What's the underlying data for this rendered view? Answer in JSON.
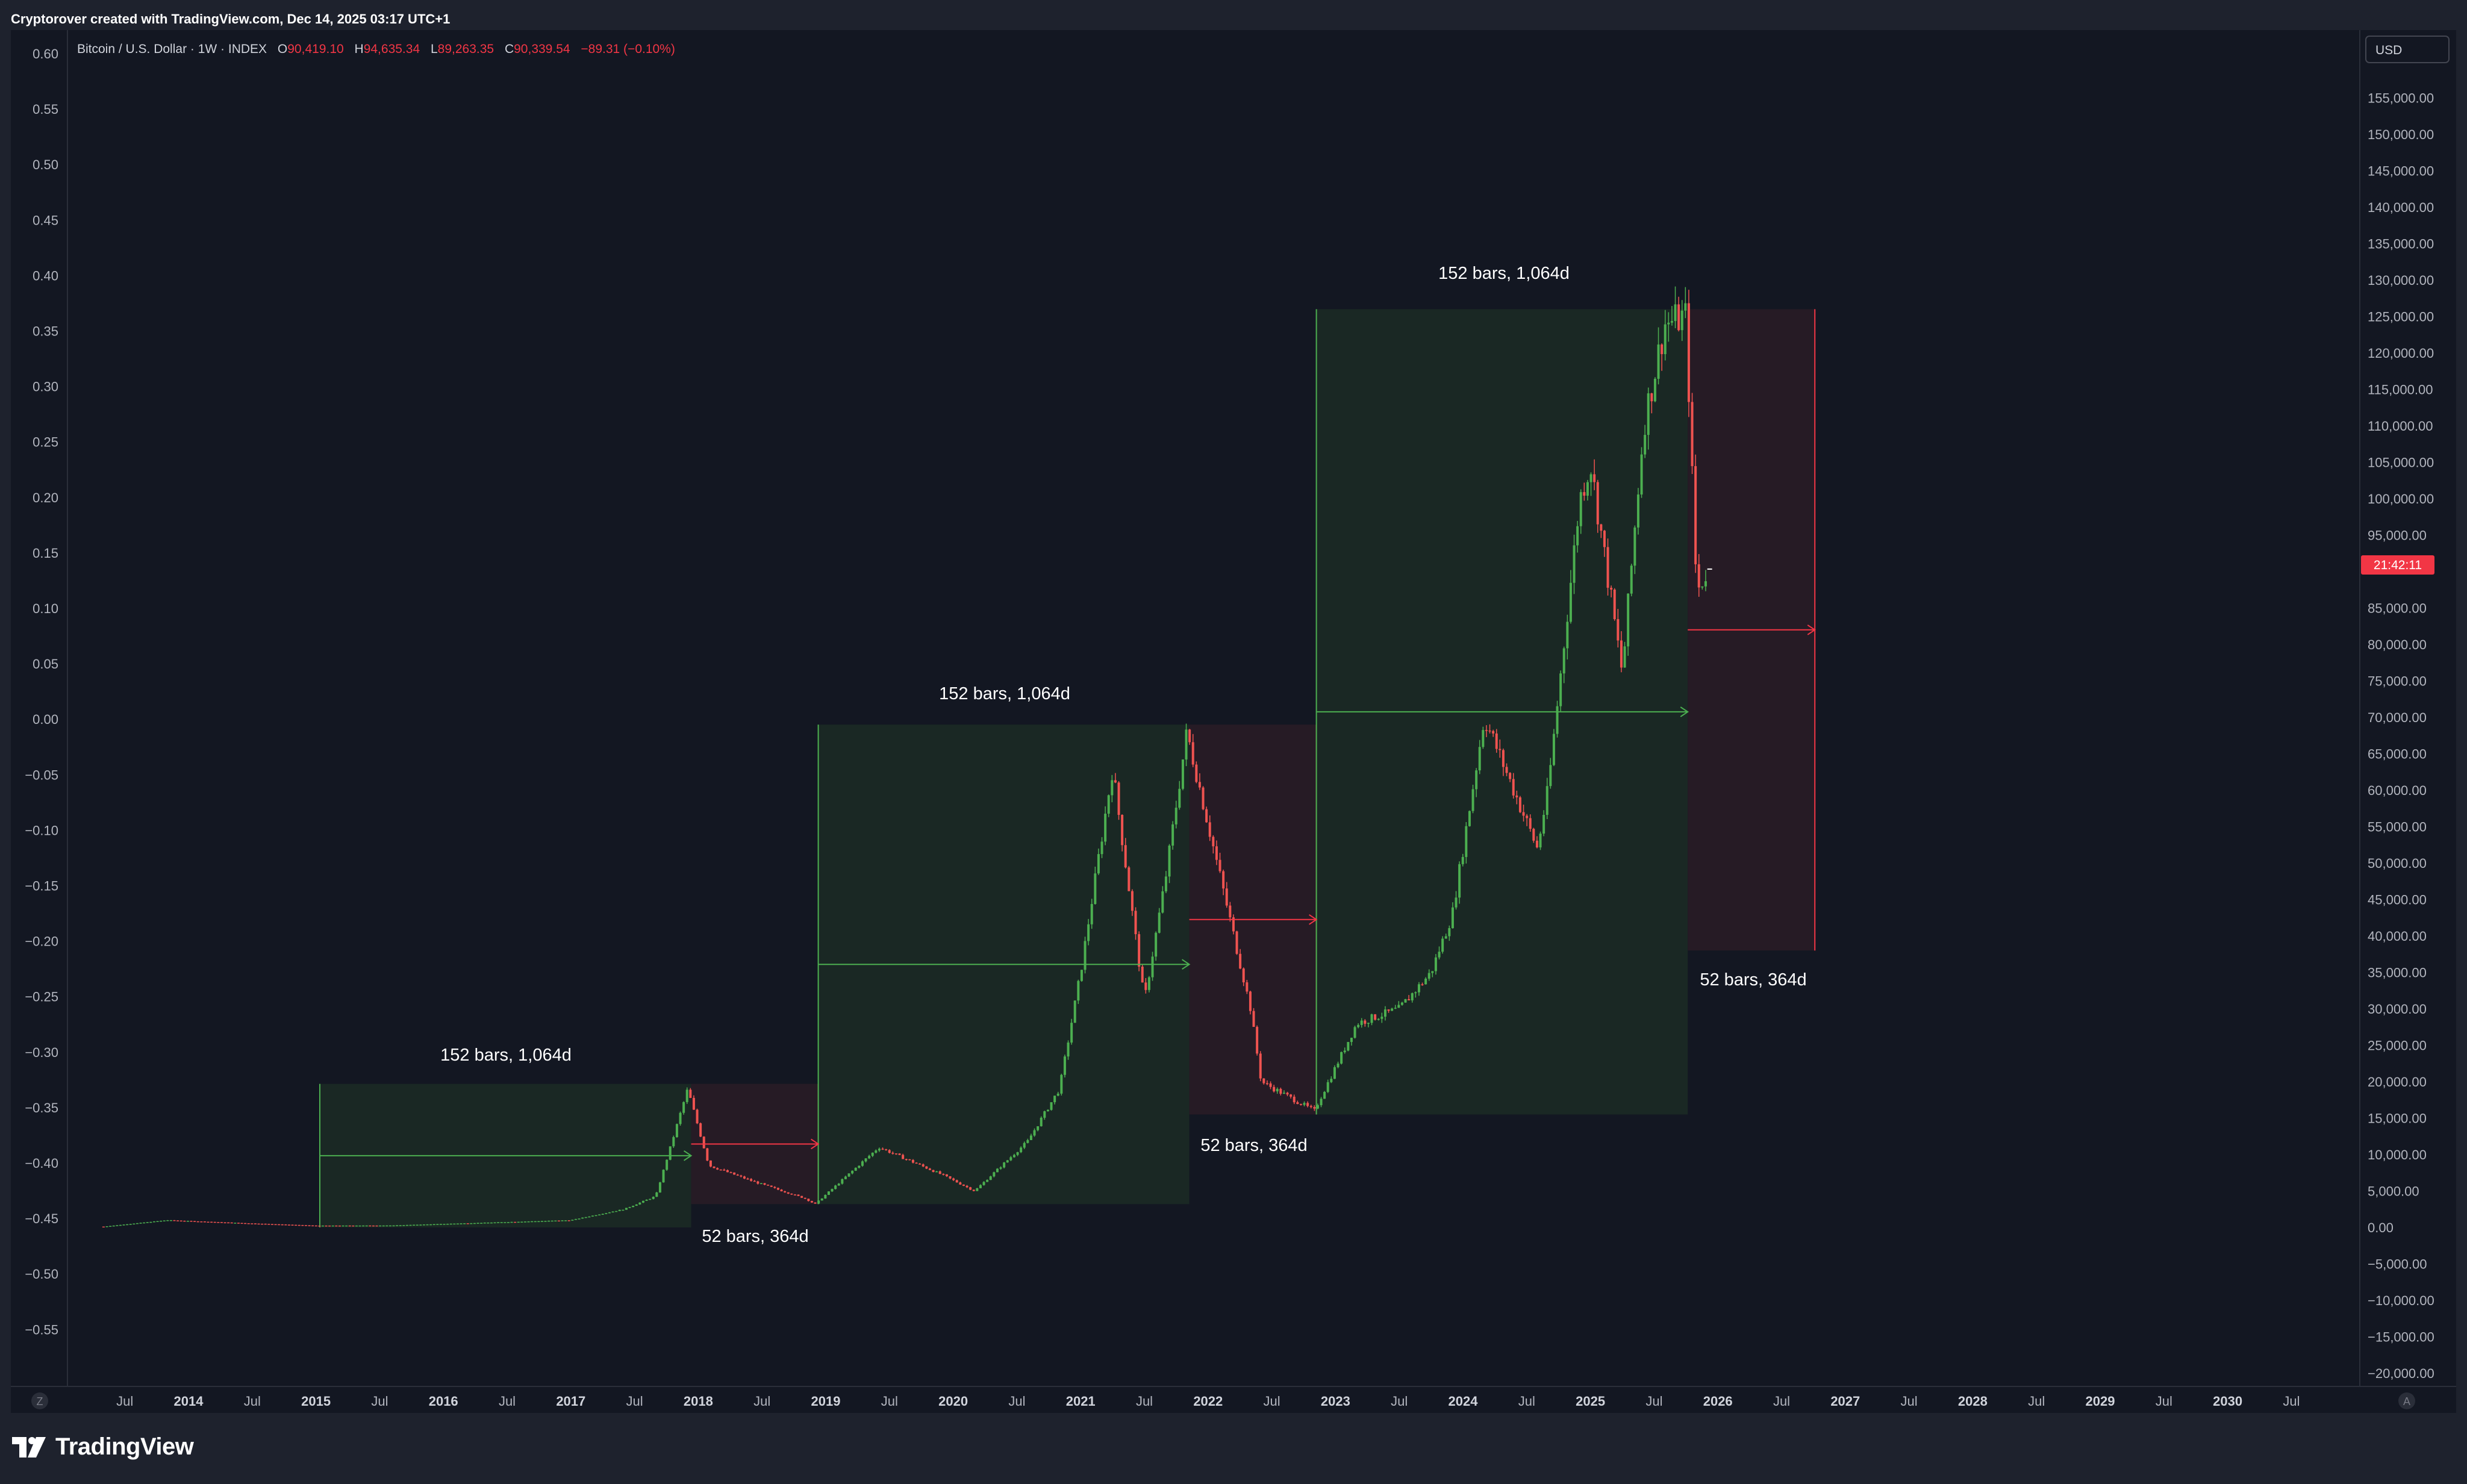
{
  "header": {
    "credit": "Cryptorover created with TradingView.com, Dec 14, 2025 03:17 UTC+1"
  },
  "legend": {
    "symbol": "Bitcoin / U.S. Dollar · 1W · INDEX",
    "open_label": "O",
    "open": "90,419.10",
    "high_label": "H",
    "high": "94,635.34",
    "low_label": "L",
    "low": "89,263.35",
    "close_label": "C",
    "close": "90,339.54",
    "change": "−89.31 (−0.10%)"
  },
  "right_axis": {
    "currency": "USD",
    "ticks": [
      "155,000.00",
      "150,000.00",
      "145,000.00",
      "140,000.00",
      "135,000.00",
      "130,000.00",
      "125,000.00",
      "120,000.00",
      "115,000.00",
      "110,000.00",
      "105,000.00",
      "100,000.00",
      "95,000.00",
      "85,000.00",
      "80,000.00",
      "75,000.00",
      "70,000.00",
      "65,000.00",
      "60,000.00",
      "55,000.00",
      "50,000.00",
      "45,000.00",
      "40,000.00",
      "35,000.00",
      "30,000.00",
      "25,000.00",
      "20,000.00",
      "15,000.00",
      "10,000.00",
      "5,000.00",
      "0.00",
      "−5,000.00",
      "−10,000.00",
      "−15,000.00",
      "−20,000.00"
    ],
    "countdown": "21:42:11"
  },
  "left_axis": {
    "ticks": [
      "0.60",
      "0.55",
      "0.50",
      "0.45",
      "0.40",
      "0.35",
      "0.30",
      "0.25",
      "0.20",
      "0.15",
      "0.10",
      "0.05",
      "0.00",
      "−0.05",
      "−0.10",
      "−0.15",
      "−0.20",
      "−0.25",
      "−0.30",
      "−0.35",
      "−0.40",
      "−0.45",
      "−0.50",
      "−0.55"
    ]
  },
  "time_axis": {
    "left_button": "Z",
    "right_button": "A",
    "labels": [
      {
        "t": "Jul",
        "year": false
      },
      {
        "t": "2014",
        "year": true
      },
      {
        "t": "Jul",
        "year": false
      },
      {
        "t": "2015",
        "year": true
      },
      {
        "t": "Jul",
        "year": false
      },
      {
        "t": "2016",
        "year": true
      },
      {
        "t": "Jul",
        "year": false
      },
      {
        "t": "2017",
        "year": true
      },
      {
        "t": "Jul",
        "year": false
      },
      {
        "t": "2018",
        "year": true
      },
      {
        "t": "Jul",
        "year": false
      },
      {
        "t": "2019",
        "year": true
      },
      {
        "t": "Jul",
        "year": false
      },
      {
        "t": "2020",
        "year": true
      },
      {
        "t": "Jul",
        "year": false
      },
      {
        "t": "2021",
        "year": true
      },
      {
        "t": "Jul",
        "year": false
      },
      {
        "t": "2022",
        "year": true
      },
      {
        "t": "Jul",
        "year": false
      },
      {
        "t": "2023",
        "year": true
      },
      {
        "t": "Jul",
        "year": false
      },
      {
        "t": "2024",
        "year": true
      },
      {
        "t": "Jul",
        "year": false
      },
      {
        "t": "2025",
        "year": true
      },
      {
        "t": "Jul",
        "year": false
      },
      {
        "t": "2026",
        "year": true
      },
      {
        "t": "Jul",
        "year": false
      },
      {
        "t": "2027",
        "year": true
      },
      {
        "t": "Jul",
        "year": false
      },
      {
        "t": "2028",
        "year": true
      },
      {
        "t": "Jul",
        "year": false
      },
      {
        "t": "2029",
        "year": true
      },
      {
        "t": "Jul",
        "year": false
      },
      {
        "t": "2030",
        "year": true
      },
      {
        "t": "Jul",
        "year": false
      }
    ]
  },
  "annotations": {
    "bull_1": "152 bars, 1,064d",
    "bear_1": "52 bars, 364d",
    "bull_2": "152 bars, 1,064d",
    "bear_2": "52 bars, 364d",
    "bull_3": "152 bars, 1,064d",
    "bear_3": "52 bars, 364d"
  },
  "footer": {
    "brand": "TradingView"
  },
  "colors": {
    "background": "#131722",
    "panel": "#1e222d",
    "up": "#26a69a",
    "up_line": "#4caf50",
    "down": "#ef5350",
    "bull_zone": "#1a2824",
    "bear_zone": "#261b25",
    "text": "#d1d4dc"
  },
  "chart_data": {
    "type": "line",
    "title": "Bitcoin / U.S. Dollar · 1W · INDEX",
    "xlabel": "",
    "ylabel": "USD",
    "ylim": [
      -20000,
      155000
    ],
    "grid": false,
    "scale": "linear",
    "series": [
      {
        "name": "Bitcoin / U.S. Dollar",
        "x": [
          "2013-05",
          "2013-11",
          "2014-06",
          "2015-01",
          "2015-08",
          "2016-06",
          "2017-01",
          "2017-06",
          "2017-09",
          "2017-12",
          "2018-02",
          "2018-06",
          "2018-11",
          "2018-12",
          "2019-06",
          "2019-12",
          "2020-03",
          "2020-08",
          "2020-11",
          "2021-01",
          "2021-04",
          "2021-07",
          "2021-09",
          "2021-11",
          "2022-05",
          "2022-06",
          "2022-11",
          "2023-03",
          "2023-07",
          "2023-10",
          "2023-12",
          "2024-03",
          "2024-08",
          "2024-09",
          "2024-12",
          "2025-01",
          "2025-04",
          "2025-06",
          "2025-08",
          "2025-10",
          "2025-11",
          "2025-12"
        ],
        "y": [
          120,
          1000,
          600,
          250,
          270,
          700,
          1000,
          2500,
          4300,
          19000,
          8500,
          6400,
          4000,
          3200,
          11000,
          7200,
          5000,
          11800,
          19000,
          35000,
          63000,
          31000,
          48000,
          68000,
          30000,
          20000,
          16000,
          28000,
          30000,
          35000,
          43000,
          70000,
          52000,
          60000,
          100000,
          105000,
          76000,
          110000,
          124000,
          125000,
          87000,
          90340
        ]
      }
    ],
    "ranges": [
      {
        "label": "152 bars, 1,064d",
        "kind": "bull",
        "from": "2015-01-12",
        "to": "2017-12-11",
        "price_low": 0,
        "price_high": 19700
      },
      {
        "label": "52 bars, 364d",
        "kind": "bear",
        "from": "2017-12-11",
        "to": "2018-12-10",
        "price_low": 3200,
        "price_high": 19700
      },
      {
        "label": "152 bars, 1,064d",
        "kind": "bull",
        "from": "2018-12-10",
        "to": "2021-11-08",
        "price_low": 3200,
        "price_high": 69000
      },
      {
        "label": "52 bars, 364d",
        "kind": "bear",
        "from": "2021-11-08",
        "to": "2022-11-07",
        "price_low": 15500,
        "price_high": 69000
      },
      {
        "label": "152 bars, 1,064d",
        "kind": "bull",
        "from": "2022-11-07",
        "to": "2025-10-06",
        "price_low": 15500,
        "price_high": 126000
      },
      {
        "label": "52 bars, 364d",
        "kind": "bear",
        "from": "2025-10-06",
        "to": "2026-10-05",
        "price_low": 38000,
        "price_high": 126000
      }
    ],
    "last_price": 90339.54
  }
}
